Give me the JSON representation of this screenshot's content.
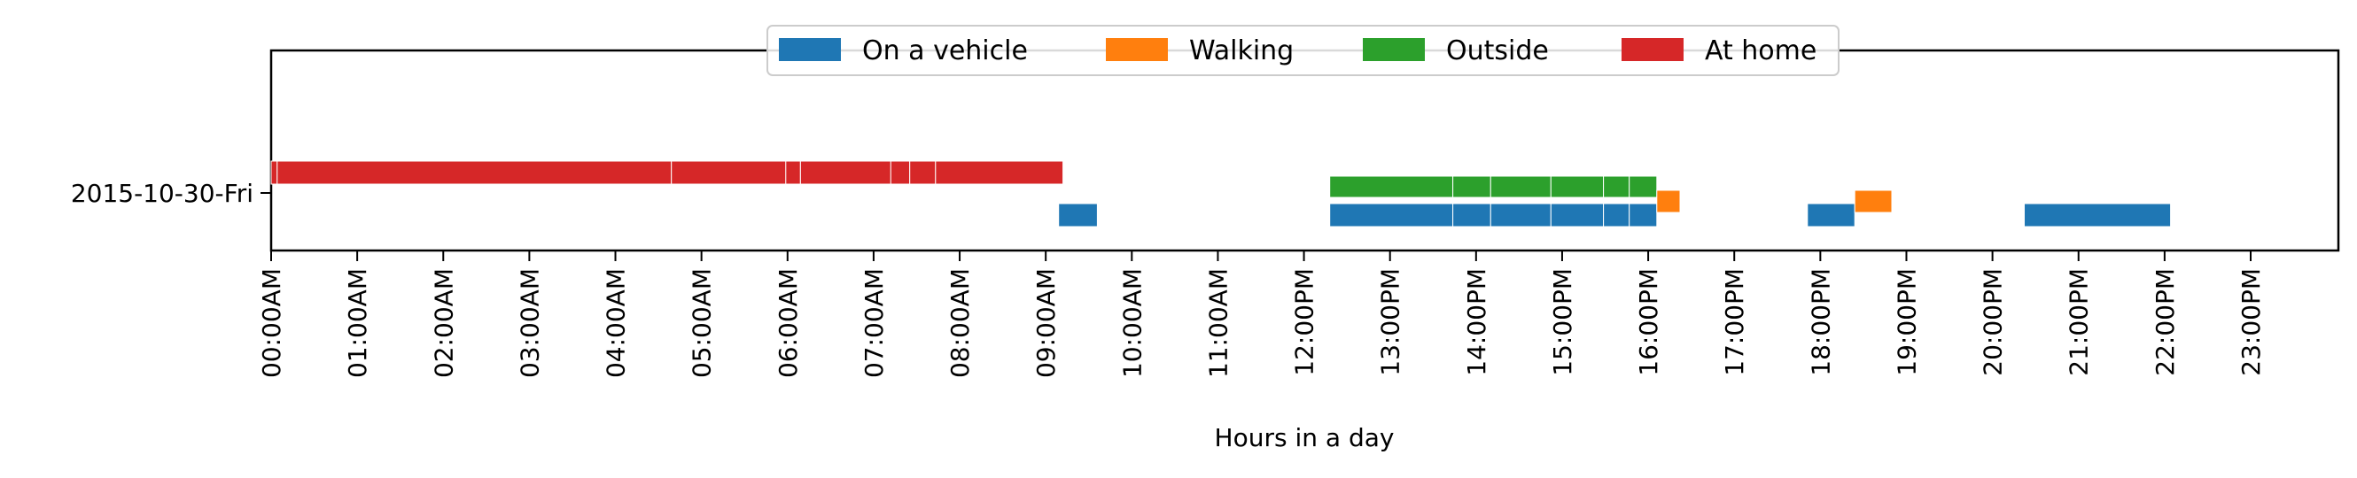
{
  "chart_data": {
    "type": "timeline",
    "xlabel": "Hours in a day",
    "ylabel": "",
    "xlim": [
      0,
      24
    ],
    "x_tick_labels": [
      "00:00AM",
      "01:00AM",
      "02:00AM",
      "03:00AM",
      "04:00AM",
      "05:00AM",
      "06:00AM",
      "07:00AM",
      "08:00AM",
      "09:00AM",
      "10:00AM",
      "11:00AM",
      "12:00PM",
      "13:00PM",
      "14:00PM",
      "15:00PM",
      "16:00PM",
      "17:00PM",
      "18:00PM",
      "19:00PM",
      "20:00PM",
      "21:00PM",
      "22:00PM",
      "23:00PM"
    ],
    "categories": [
      "2015-10-30-Fri"
    ],
    "legend_position": "top-center",
    "grid": false,
    "series": [
      {
        "name": "On a vehicle",
        "color": "#1f77b4",
        "lane": "lower",
        "intervals": [
          [
            9.15,
            9.6
          ],
          [
            12.3,
            13.73
          ],
          [
            13.73,
            14.17
          ],
          [
            14.17,
            14.87
          ],
          [
            14.87,
            15.48
          ],
          [
            15.48,
            15.78
          ],
          [
            15.78,
            16.1
          ],
          [
            17.85,
            18.4
          ],
          [
            20.37,
            22.07
          ]
        ]
      },
      {
        "name": "Walking",
        "color": "#ff7f0e",
        "lane": "middle",
        "intervals": [
          [
            16.1,
            16.37
          ],
          [
            18.4,
            18.83
          ]
        ]
      },
      {
        "name": "Outside",
        "color": "#2ca02c",
        "lane": "upper",
        "intervals": [
          [
            12.3,
            13.73
          ],
          [
            13.73,
            14.17
          ],
          [
            14.17,
            14.87
          ],
          [
            14.87,
            15.48
          ],
          [
            15.48,
            15.78
          ],
          [
            15.78,
            16.1
          ]
        ]
      },
      {
        "name": "At home",
        "color": "#d62728",
        "lane": "top",
        "intervals": [
          [
            0,
            0.07
          ],
          [
            0.07,
            4.65
          ],
          [
            4.65,
            5.98
          ],
          [
            5.98,
            6.15
          ],
          [
            6.15,
            7.2
          ],
          [
            7.2,
            7.42
          ],
          [
            7.42,
            7.72
          ],
          [
            7.72,
            9.2
          ]
        ]
      }
    ]
  }
}
